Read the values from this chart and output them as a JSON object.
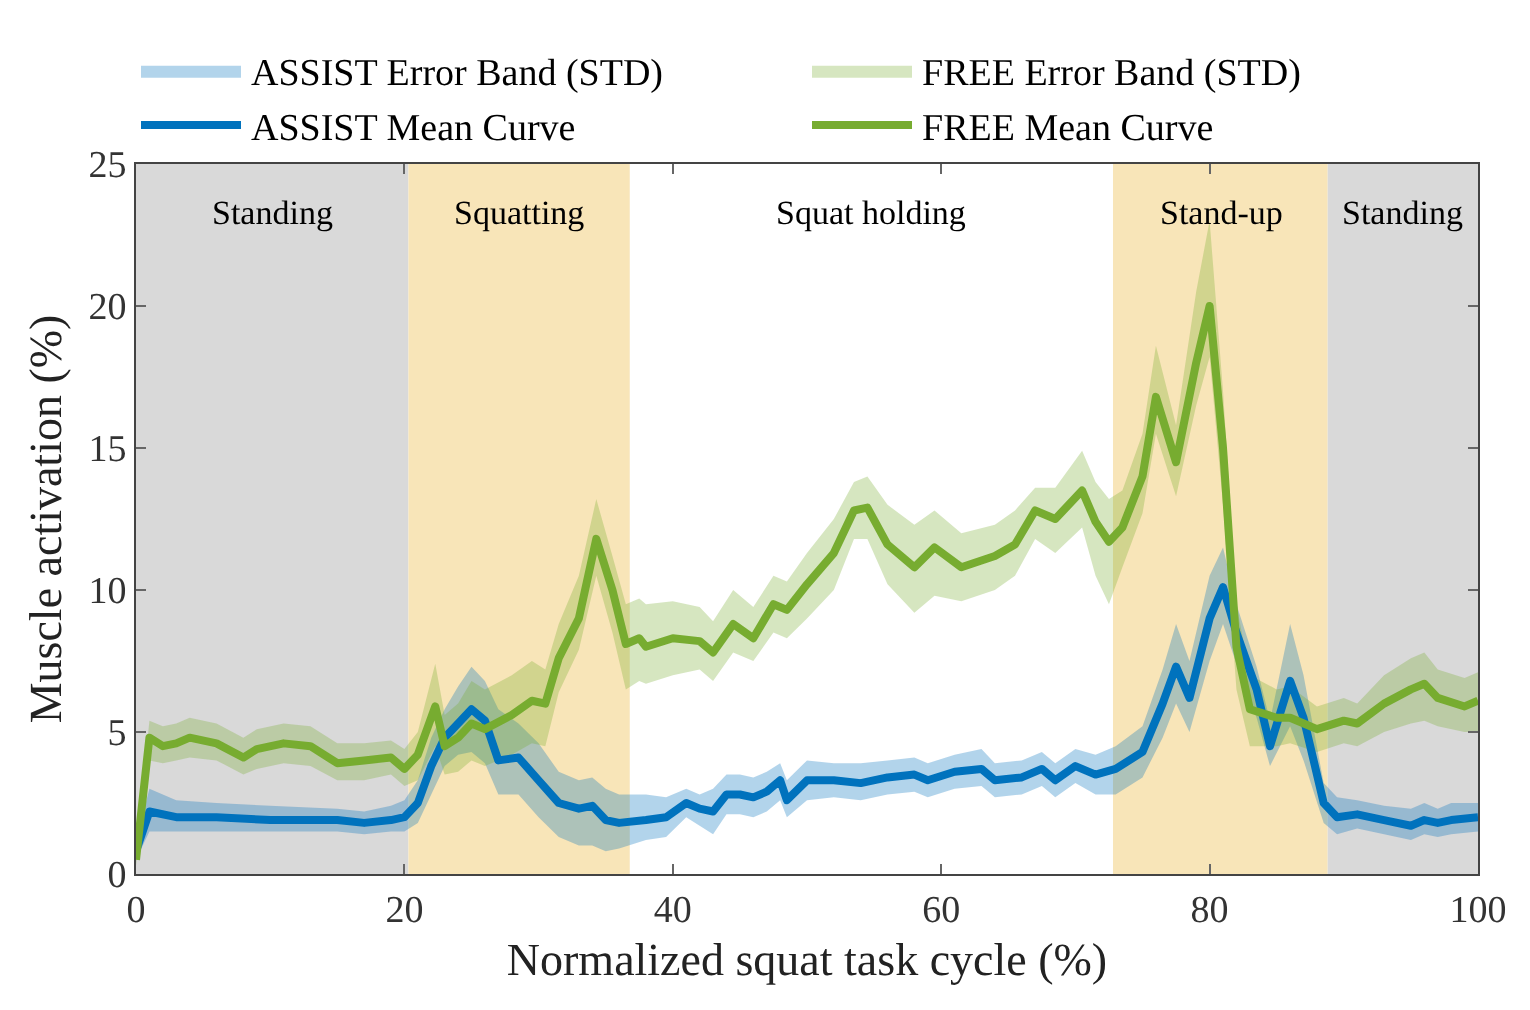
{
  "chart_data": {
    "type": "line",
    "xlabel": "Normalized squat task cycle (%)",
    "ylabel": "Muscle activation (%)",
    "xlim": [
      0,
      100
    ],
    "xticks": [
      0,
      20,
      40,
      60,
      80,
      100
    ],
    "ylim": [
      0,
      25
    ],
    "yticks": [
      0,
      5,
      10,
      15,
      20,
      25
    ],
    "grid": false,
    "legend": "top",
    "line_style": "solid",
    "marker": "none",
    "bands": [
      {
        "axis": "x",
        "from": 0,
        "to": 20.3,
        "label": "Standing",
        "color": "#d9d9d9"
      },
      {
        "axis": "x",
        "from": 20.3,
        "to": 36.8,
        "label": "Squatting",
        "color": "#f8e5b8"
      },
      {
        "axis": "x",
        "from": 36.8,
        "to": 72.8,
        "label": "Squat holding",
        "color": "#ffffff"
      },
      {
        "axis": "x",
        "from": 72.8,
        "to": 88.8,
        "label": "Stand-up",
        "color": "#f8e5b8"
      },
      {
        "axis": "x",
        "from": 88.8,
        "to": 100,
        "label": "Standing",
        "color": "#d9d9d9"
      }
    ],
    "series": [
      {
        "name": "ASSIST Error Band (STD)",
        "type": "area"
      },
      {
        "name": "FREE Error Band (STD)",
        "type": "area"
      },
      {
        "name": "ASSIST Mean Curve",
        "color": "#0072bd",
        "x": [
          0,
          1,
          3,
          6,
          10,
          15,
          17,
          19,
          20,
          21,
          22,
          23,
          24,
          25,
          26,
          27,
          28.5,
          30,
          31.5,
          33,
          34,
          35,
          36,
          38,
          39.5,
          41,
          42,
          43,
          44,
          45,
          46,
          47,
          48,
          48.5,
          50,
          52,
          54,
          56,
          58,
          59,
          61,
          63,
          64,
          66,
          67.5,
          68.5,
          70,
          71.5,
          73,
          75,
          76.5,
          77.5,
          78.5,
          80,
          81,
          82,
          83.5,
          84.5,
          86,
          87,
          88.5,
          89.5,
          91,
          93,
          95,
          96,
          97,
          98,
          100
        ],
        "values": [
          0.8,
          2.2,
          2.0,
          2.0,
          1.9,
          1.9,
          1.8,
          1.9,
          2.0,
          2.5,
          3.8,
          4.8,
          5.3,
          5.8,
          5.4,
          4.0,
          4.1,
          3.3,
          2.5,
          2.3,
          2.4,
          1.9,
          1.8,
          1.9,
          2.0,
          2.5,
          2.3,
          2.2,
          2.8,
          2.8,
          2.7,
          2.9,
          3.3,
          2.6,
          3.3,
          3.3,
          3.2,
          3.4,
          3.5,
          3.3,
          3.6,
          3.7,
          3.3,
          3.4,
          3.7,
          3.3,
          3.8,
          3.5,
          3.7,
          4.3,
          6.0,
          7.3,
          6.2,
          9.0,
          10.1,
          8.5,
          6.5,
          4.5,
          6.8,
          5.5,
          2.5,
          2.0,
          2.1,
          1.9,
          1.7,
          1.9,
          1.8,
          1.9,
          2.0
        ],
        "lower": [
          0.5,
          1.5,
          1.5,
          1.5,
          1.5,
          1.5,
          1.4,
          1.5,
          1.5,
          1.8,
          2.8,
          3.8,
          4.2,
          4.3,
          3.9,
          2.8,
          2.8,
          2.0,
          1.3,
          1.0,
          1.0,
          0.8,
          0.9,
          1.2,
          1.3,
          2.0,
          1.7,
          1.4,
          2.1,
          2.1,
          2.0,
          2.2,
          2.6,
          2.0,
          2.6,
          2.7,
          2.6,
          2.8,
          2.9,
          2.7,
          3.0,
          3.1,
          2.7,
          2.8,
          3.1,
          2.7,
          3.2,
          2.8,
          2.8,
          3.4,
          4.8,
          6.0,
          5.0,
          7.5,
          8.8,
          7.4,
          5.5,
          3.8,
          5.2,
          4.0,
          1.8,
          1.4,
          1.6,
          1.4,
          1.2,
          1.4,
          1.3,
          1.4,
          1.5
        ],
        "upper": [
          1.2,
          3.0,
          2.6,
          2.5,
          2.4,
          2.3,
          2.2,
          2.4,
          2.6,
          3.3,
          4.8,
          5.8,
          6.6,
          7.3,
          6.8,
          5.8,
          5.3,
          4.6,
          3.6,
          3.3,
          3.4,
          3.0,
          2.8,
          2.8,
          2.7,
          3.0,
          2.8,
          3.0,
          3.5,
          3.5,
          3.4,
          3.6,
          3.9,
          3.3,
          4.0,
          3.9,
          3.9,
          4.0,
          4.1,
          3.9,
          4.2,
          4.4,
          3.9,
          4.0,
          4.3,
          3.9,
          4.4,
          4.2,
          4.5,
          5.2,
          7.2,
          8.8,
          7.5,
          10.5,
          11.5,
          9.5,
          7.3,
          5.4,
          8.8,
          7.0,
          3.2,
          2.7,
          2.6,
          2.4,
          2.3,
          2.5,
          2.3,
          2.5,
          2.5
        ]
      },
      {
        "name": "FREE Mean Curve",
        "color": "#77ac30",
        "x": [
          0,
          1,
          2,
          3,
          4,
          6,
          8,
          9,
          11,
          13,
          15,
          17,
          19,
          20,
          21,
          22.3,
          23,
          24,
          25,
          26,
          28,
          29.5,
          30.5,
          31.5,
          33,
          34.3,
          35.5,
          36.5,
          37.5,
          38,
          40,
          42,
          43,
          44.5,
          46,
          47.5,
          48.5,
          50,
          52,
          53.5,
          54.5,
          56,
          58,
          59.5,
          61.5,
          64,
          65.5,
          67,
          68.5,
          70.5,
          71.5,
          72.5,
          73.5,
          75,
          76,
          77.5,
          79,
          80,
          81,
          82,
          83,
          85,
          86,
          88,
          90,
          91,
          93,
          95,
          96,
          97,
          99,
          100
        ],
        "values": [
          0.5,
          4.8,
          4.5,
          4.6,
          4.8,
          4.6,
          4.1,
          4.4,
          4.6,
          4.5,
          3.9,
          4.0,
          4.1,
          3.7,
          4.2,
          5.9,
          4.5,
          4.8,
          5.3,
          5.1,
          5.6,
          6.1,
          6.0,
          7.6,
          9.0,
          11.8,
          10.0,
          8.1,
          8.3,
          8.0,
          8.3,
          8.2,
          7.8,
          8.8,
          8.3,
          9.5,
          9.3,
          10.2,
          11.3,
          12.8,
          12.9,
          11.6,
          10.8,
          11.5,
          10.8,
          11.2,
          11.6,
          12.8,
          12.5,
          13.5,
          12.4,
          11.7,
          12.2,
          14.0,
          16.8,
          14.5,
          18.0,
          20.0,
          15.0,
          8.0,
          5.8,
          5.5,
          5.5,
          5.1,
          5.4,
          5.3,
          6.0,
          6.5,
          6.7,
          6.2,
          5.9,
          6.1
        ],
        "lower": [
          0.3,
          4.0,
          3.9,
          4.0,
          4.1,
          4.0,
          3.5,
          3.7,
          3.9,
          3.8,
          3.3,
          3.3,
          3.5,
          3.1,
          3.3,
          4.5,
          3.5,
          3.6,
          4.0,
          3.8,
          4.2,
          4.6,
          4.5,
          6.4,
          7.9,
          10.5,
          8.5,
          6.5,
          6.8,
          6.7,
          7.0,
          7.2,
          6.8,
          7.8,
          7.5,
          8.5,
          8.3,
          9.0,
          10.0,
          11.8,
          11.8,
          10.2,
          9.2,
          9.8,
          9.6,
          10.0,
          10.5,
          11.8,
          11.3,
          12.2,
          10.5,
          9.5,
          10.8,
          12.7,
          15.5,
          13.3,
          16.5,
          18.2,
          13.0,
          6.5,
          4.5,
          4.5,
          4.6,
          4.3,
          4.6,
          4.5,
          5.0,
          5.3,
          5.4,
          5.2,
          5.0,
          5.0
        ],
        "upper": [
          0.8,
          5.4,
          5.2,
          5.3,
          5.5,
          5.3,
          4.8,
          5.1,
          5.3,
          5.2,
          4.6,
          4.6,
          4.7,
          4.4,
          5.0,
          7.4,
          5.6,
          6.0,
          6.8,
          6.5,
          7.0,
          7.5,
          7.2,
          8.8,
          10.5,
          13.2,
          11.2,
          9.5,
          9.7,
          9.5,
          9.6,
          9.4,
          8.9,
          10.0,
          9.4,
          10.5,
          10.3,
          11.3,
          12.5,
          13.8,
          14.0,
          13.0,
          12.3,
          12.8,
          12.0,
          12.3,
          12.8,
          13.6,
          13.6,
          14.9,
          13.8,
          13.2,
          13.5,
          15.5,
          18.6,
          15.8,
          20.5,
          23.0,
          17.0,
          9.5,
          7.0,
          6.5,
          6.6,
          5.9,
          6.2,
          6.0,
          7.0,
          7.6,
          7.8,
          7.2,
          6.9,
          7.1
        ]
      }
    ]
  }
}
